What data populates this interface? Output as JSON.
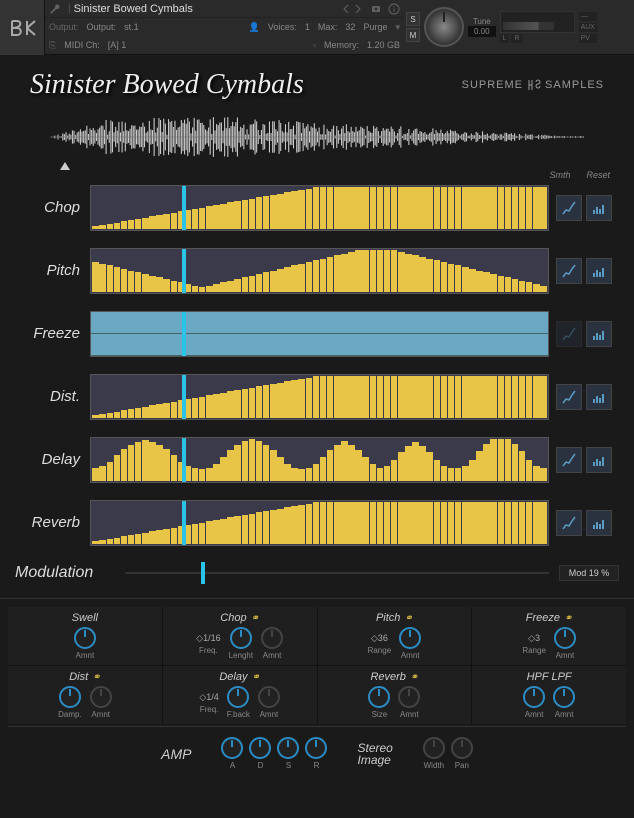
{
  "header": {
    "instrument_name": "Sinister Bowed Cymbals",
    "output_label": "Output:",
    "output_value": "st.1",
    "midi_label": "MIDI Ch:",
    "midi_value": "[A] 1",
    "voices_label": "Voices:",
    "voices_value": "1",
    "voices_max_label": "Max:",
    "voices_max": "32",
    "memory_label": "Memory:",
    "memory_value": "1.20 GB",
    "purge_label": "Purge",
    "tune_label": "Tune",
    "tune_value": "0.00",
    "s_btn": "S",
    "m_btn": "M",
    "aux_label": "AUX",
    "pv_label": "PV"
  },
  "title": "Sinister Bowed Cymbals",
  "brand": "SUPREME SAMPLES",
  "seq_hdr": {
    "smth": "Smth",
    "reset": "Reset"
  },
  "sequencers": [
    {
      "label": "Chop",
      "type": "ramp"
    },
    {
      "label": "Pitch",
      "type": "wave"
    },
    {
      "label": "Freeze",
      "type": "freeze"
    },
    {
      "label": "Dist.",
      "type": "ramp"
    },
    {
      "label": "Delay",
      "type": "hills"
    },
    {
      "label": "Reverb",
      "type": "ramp"
    }
  ],
  "modulation": {
    "label": "Modulation",
    "value": "Mod 19 %"
  },
  "fx": [
    {
      "title": "Swell",
      "link": false,
      "knobs": [
        {
          "label": "Amnt",
          "active": true
        }
      ]
    },
    {
      "title": "Chop",
      "link": true,
      "freq": "1/16",
      "knobs": [
        {
          "label": "Freq.",
          "active": false,
          "isFreq": true
        },
        {
          "label": "Lenght",
          "active": true
        },
        {
          "label": "Amnt",
          "active": false
        }
      ]
    },
    {
      "title": "Pitch",
      "link": true,
      "freq": "36",
      "knobs": [
        {
          "label": "Range",
          "active": false,
          "isFreq": true
        },
        {
          "label": "Amnt",
          "active": true
        }
      ]
    },
    {
      "title": "Freeze",
      "link": true,
      "freq": "3",
      "knobs": [
        {
          "label": "Range",
          "active": false,
          "isFreq": true
        },
        {
          "label": "Amnt",
          "active": true
        }
      ]
    },
    {
      "title": "Dist",
      "link": true,
      "knobs": [
        {
          "label": "Damp.",
          "active": true
        },
        {
          "label": "Amnt",
          "active": false
        }
      ]
    },
    {
      "title": "Delay",
      "link": true,
      "freq": "1/4",
      "knobs": [
        {
          "label": "Freq.",
          "active": false,
          "isFreq": true
        },
        {
          "label": "F.back",
          "active": true
        },
        {
          "label": "Amnt",
          "active": false
        }
      ]
    },
    {
      "title": "Reverb",
      "link": true,
      "knobs": [
        {
          "label": "Size",
          "active": true
        },
        {
          "label": "Amnt",
          "active": false
        }
      ]
    },
    {
      "title": "HPF   LPF",
      "link": false,
      "knobs": [
        {
          "label": "Amnt",
          "active": true
        },
        {
          "label": "Amnt",
          "active": true
        }
      ]
    }
  ],
  "amp": {
    "label": "AMP",
    "adsr": [
      "A",
      "D",
      "S",
      "R"
    ]
  },
  "stereo": {
    "label": "Stereo Image",
    "knobs": [
      "Width",
      "Pan"
    ]
  },
  "colors": {
    "bar": "#e8c547",
    "playhead": "#2bc4e8",
    "knob": "#2b8cc4"
  },
  "bar_patterns": {
    "ramp": [
      5,
      8,
      11,
      14,
      17,
      20,
      23,
      26,
      29,
      32,
      35,
      38,
      41,
      44,
      47,
      50,
      53,
      56,
      59,
      62,
      65,
      68,
      71,
      74,
      77,
      80,
      83,
      86,
      89,
      92,
      95,
      98,
      100,
      100,
      100,
      100,
      100,
      100,
      100,
      100,
      100,
      100,
      100,
      100,
      100,
      100,
      100,
      100,
      100,
      100,
      100,
      100,
      100,
      100,
      100,
      100,
      100,
      100,
      100,
      100,
      100,
      100,
      100,
      100
    ],
    "wave": [
      70,
      66,
      62,
      58,
      54,
      50,
      46,
      42,
      38,
      34,
      30,
      26,
      22,
      18,
      14,
      10,
      14,
      18,
      22,
      26,
      30,
      34,
      38,
      42,
      46,
      50,
      54,
      58,
      62,
      66,
      70,
      74,
      78,
      82,
      86,
      90,
      94,
      98,
      100,
      100,
      100,
      100,
      98,
      94,
      90,
      86,
      82,
      78,
      74,
      70,
      66,
      62,
      58,
      54,
      50,
      46,
      42,
      38,
      34,
      30,
      26,
      22,
      18,
      14
    ],
    "hills": [
      30,
      35,
      45,
      60,
      75,
      85,
      92,
      96,
      92,
      85,
      75,
      60,
      45,
      35,
      30,
      28,
      30,
      40,
      55,
      72,
      85,
      94,
      98,
      94,
      85,
      72,
      55,
      40,
      30,
      28,
      30,
      40,
      55,
      72,
      85,
      94,
      85,
      72,
      55,
      40,
      30,
      35,
      50,
      68,
      82,
      92,
      82,
      68,
      50,
      35,
      30,
      30,
      35,
      50,
      70,
      88,
      98,
      100,
      98,
      88,
      70,
      50,
      35,
      30
    ]
  }
}
